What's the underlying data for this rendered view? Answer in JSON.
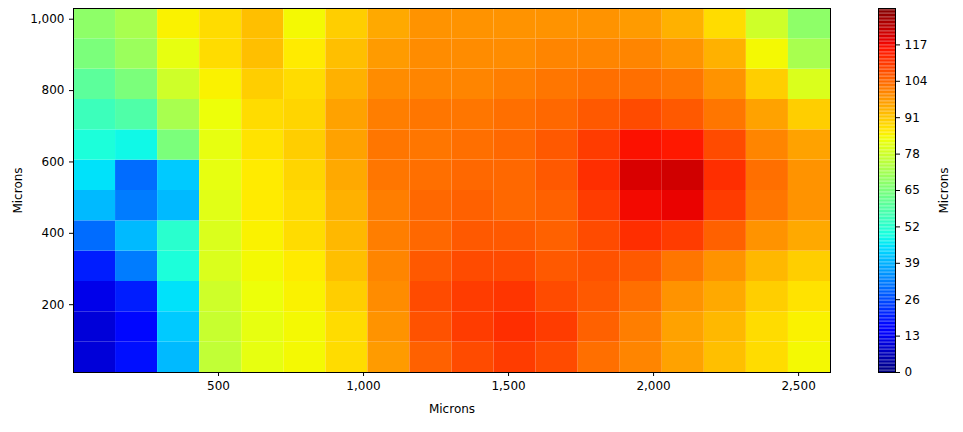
{
  "chart_data": {
    "type": "heatmap",
    "xlabel": "Microns",
    "ylabel": "Microns",
    "color": "jet",
    "xlim": [
      0,
      2610
    ],
    "ylim": [
      10,
      1030
    ],
    "xticks": [
      500,
      1000,
      1500,
      2000,
      2500
    ],
    "yticks": [
      200,
      400,
      600,
      800,
      1000
    ],
    "x": [
      72.5,
      217.5,
      362.5,
      507.5,
      652.5,
      797.5,
      942.5,
      1087.5,
      1232.5,
      1377.5,
      1522.5,
      1667.5,
      1812.5,
      1957.5,
      2102.5,
      2247.5,
      2392.5,
      2537.5
    ],
    "y": [
      52.5,
      137.5,
      222.5,
      307.5,
      392.5,
      477.5,
      562.5,
      647.5,
      732.5,
      817.5,
      902.5,
      987.5
    ],
    "z": [
      [
        10,
        18,
        40,
        76,
        82,
        84,
        88,
        97,
        105,
        108,
        110,
        108,
        103,
        100,
        96,
        92,
        88,
        84
      ],
      [
        10,
        17,
        42,
        77,
        82,
        84,
        88,
        98,
        107,
        110,
        112,
        110,
        105,
        101,
        96,
        93,
        88,
        85
      ],
      [
        12,
        20,
        45,
        78,
        83,
        85,
        90,
        99,
        108,
        110,
        111,
        108,
        106,
        103,
        98,
        95,
        90,
        87
      ],
      [
        20,
        32,
        50,
        80,
        84,
        86,
        92,
        100,
        106,
        108,
        108,
        106,
        107,
        106,
        102,
        98,
        93,
        90
      ],
      [
        30,
        40,
        52,
        80,
        85,
        88,
        93,
        101,
        104,
        106,
        106,
        105,
        108,
        112,
        110,
        105,
        98,
        95
      ],
      [
        40,
        32,
        40,
        81,
        86,
        88,
        94,
        101,
        104,
        105,
        104,
        105,
        110,
        117,
        118,
        110,
        102,
        98
      ],
      [
        45,
        30,
        42,
        82,
        86,
        89,
        95,
        102,
        103,
        104,
        104,
        106,
        112,
        120,
        121,
        112,
        103,
        98
      ],
      [
        50,
        48,
        65,
        82,
        87,
        90,
        96,
        102,
        102,
        103,
        104,
        106,
        110,
        116,
        115,
        108,
        100,
        96
      ],
      [
        55,
        58,
        72,
        83,
        88,
        89,
        96,
        101,
        102,
        102,
        103,
        104,
        106,
        108,
        106,
        102,
        96,
        90
      ],
      [
        60,
        65,
        78,
        85,
        90,
        88,
        94,
        99,
        100,
        100,
        101,
        102,
        103,
        103,
        102,
        98,
        90,
        80
      ],
      [
        65,
        70,
        82,
        88,
        92,
        86,
        92,
        97,
        99,
        99,
        99,
        100,
        100,
        100,
        98,
        94,
        84,
        72
      ],
      [
        68,
        72,
        85,
        88,
        92,
        84,
        90,
        95,
        98,
        98,
        98,
        98,
        98,
        97,
        94,
        88,
        78,
        68
      ]
    ],
    "colorbar_label": "Microns",
    "colorbar_lim": [
      0,
      130
    ],
    "colorbar_ticks": [
      0,
      13,
      26,
      39,
      52,
      65,
      78,
      91,
      104,
      117
    ]
  }
}
